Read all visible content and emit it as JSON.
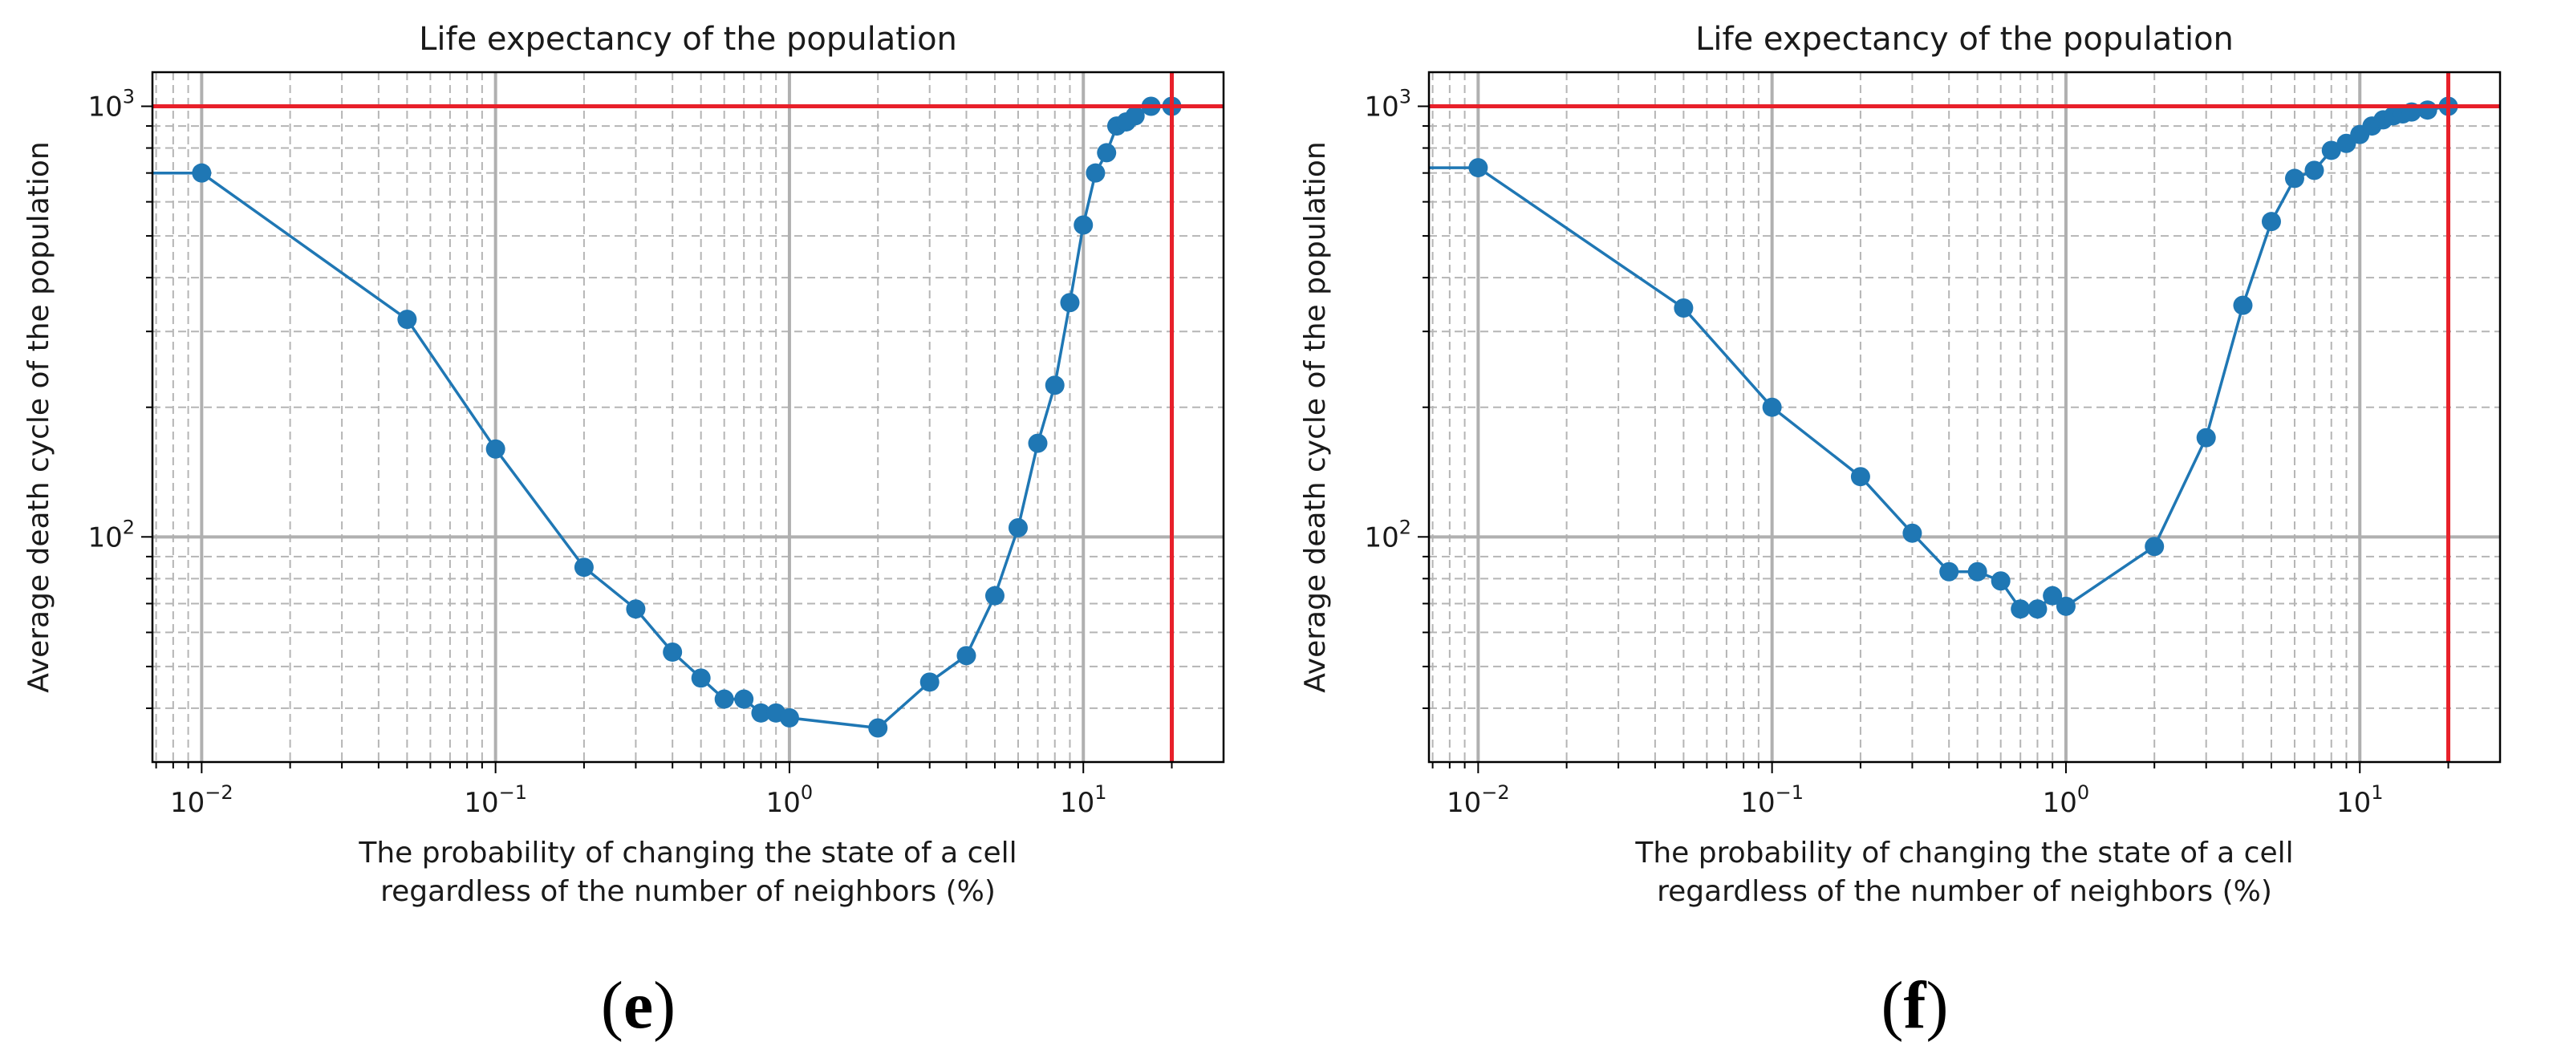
{
  "chart_data": [
    {
      "panel_label": "(e)",
      "label_open": "(",
      "label_letter": "e",
      "label_close": ")",
      "type": "line",
      "title": "Life expectancy of the population",
      "xlabel_lines": [
        "The probability of changing the state of a cell",
        "regardless of the number of neighbors (%)"
      ],
      "ylabel": "Average death cycle of the population",
      "xscale": "log",
      "yscale": "log",
      "xlim": [
        0.0068,
        30
      ],
      "ylim": [
        30,
        1200
      ],
      "xticklabels": [
        {
          "base": "10",
          "exp": "−2"
        },
        {
          "base": "10",
          "exp": "−1"
        },
        {
          "base": "10",
          "exp": "0"
        },
        {
          "base": "10",
          "exp": "1"
        }
      ],
      "yticklabels": [
        {
          "base": "10",
          "exp": "2"
        },
        {
          "base": "10",
          "exp": "3"
        }
      ],
      "grid": true,
      "series": [
        {
          "name": "Average death cycle",
          "color": "#1f77b4",
          "marker": "circle",
          "x": [
            0.0068,
            0.01,
            0.05,
            0.1,
            0.2,
            0.3,
            0.4,
            0.5,
            0.6,
            0.7,
            0.8,
            0.9,
            1.0,
            2.0,
            3.0,
            4.0,
            5.0,
            6.0,
            7.0,
            8.0,
            9.0,
            10.0,
            11.0,
            12.0,
            13.0,
            14.0,
            15.0,
            17.0,
            20.0
          ],
          "y": [
            700,
            700,
            320,
            160,
            85,
            68,
            54,
            47,
            42,
            42,
            39,
            39,
            38,
            36,
            46,
            53,
            73,
            105,
            165,
            225,
            350,
            530,
            700,
            780,
            900,
            920,
            950,
            1000,
            1000
          ],
          "marker_from_index": 1
        }
      ],
      "reference_lines": [
        {
          "axis": "y",
          "value": 1000,
          "color": "#e8202a"
        },
        {
          "axis": "x",
          "value": 20,
          "color": "#e8202a"
        }
      ]
    },
    {
      "panel_label": "(f)",
      "label_open": "(",
      "label_letter": "f",
      "label_close": ")",
      "type": "line",
      "title": "Life expectancy of the population",
      "xlabel_lines": [
        "The probability of changing the state of a cell",
        "regardless of the number of neighbors (%)"
      ],
      "ylabel": "Average death cycle of the population",
      "xscale": "log",
      "yscale": "log",
      "xlim": [
        0.0068,
        30
      ],
      "ylim": [
        30,
        1200
      ],
      "xticklabels": [
        {
          "base": "10",
          "exp": "−2"
        },
        {
          "base": "10",
          "exp": "−1"
        },
        {
          "base": "10",
          "exp": "0"
        },
        {
          "base": "10",
          "exp": "1"
        }
      ],
      "yticklabels": [
        {
          "base": "10",
          "exp": "2"
        },
        {
          "base": "10",
          "exp": "3"
        }
      ],
      "grid": true,
      "series": [
        {
          "name": "Average death cycle",
          "color": "#1f77b4",
          "marker": "circle",
          "x": [
            0.0068,
            0.01,
            0.05,
            0.1,
            0.2,
            0.3,
            0.4,
            0.5,
            0.6,
            0.7,
            0.8,
            0.9,
            1.0,
            2.0,
            3.0,
            4.0,
            5.0,
            6.0,
            7.0,
            8.0,
            9.0,
            10.0,
            11.0,
            12.0,
            13.0,
            14.0,
            15.0,
            17.0,
            20.0
          ],
          "y": [
            720,
            720,
            340,
            200,
            138,
            102,
            83,
            83,
            79,
            68,
            68,
            73,
            69,
            95,
            170,
            345,
            540,
            680,
            710,
            790,
            820,
            860,
            900,
            930,
            950,
            960,
            970,
            980,
            1000
          ],
          "marker_from_index": 1
        }
      ],
      "reference_lines": [
        {
          "axis": "y",
          "value": 1000,
          "color": "#e8202a"
        },
        {
          "axis": "x",
          "value": 20,
          "color": "#e8202a"
        }
      ]
    }
  ]
}
